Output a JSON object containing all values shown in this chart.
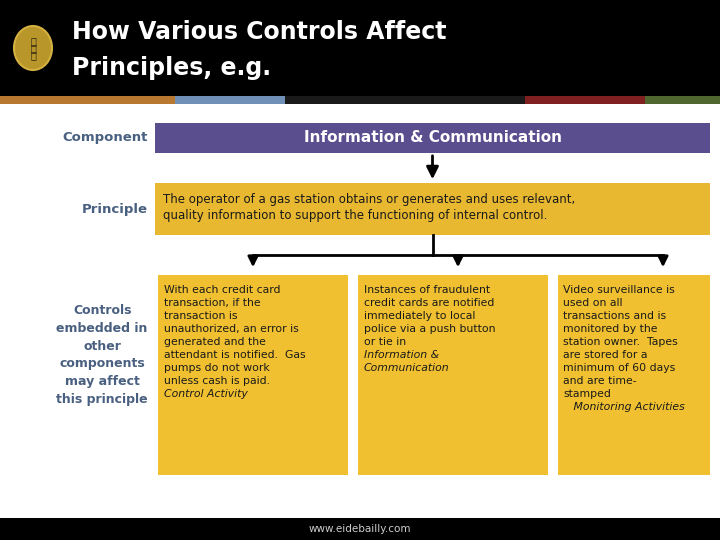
{
  "title_line1": "How Various Controls Affect",
  "title_line2": "Principles, e.g.",
  "title_bg": "#000000",
  "title_color": "#ffffff",
  "header_bg": "#5a4e8e",
  "header_text": "Information & Communication",
  "header_text_color": "#ffffff",
  "principle_bg": "#e8b830",
  "principle_label": "Principle",
  "component_label": "Component",
  "controls_label": "Controls\nembedded in\nother\ncomponents\nmay affect\nthis principle",
  "label_color": "#4a6080",
  "controls_box_bg": "#f0c030",
  "stripe_colors": [
    "#b87830",
    "#7090b8",
    "#1a1a1a",
    "#802020",
    "#506830"
  ],
  "stripe_widths": [
    175,
    110,
    240,
    120,
    75
  ],
  "footer_text": "www.eidebailly.com",
  "footer_bg": "#000000",
  "arrow_color": "#000000",
  "text_color": "#1a1a1a"
}
